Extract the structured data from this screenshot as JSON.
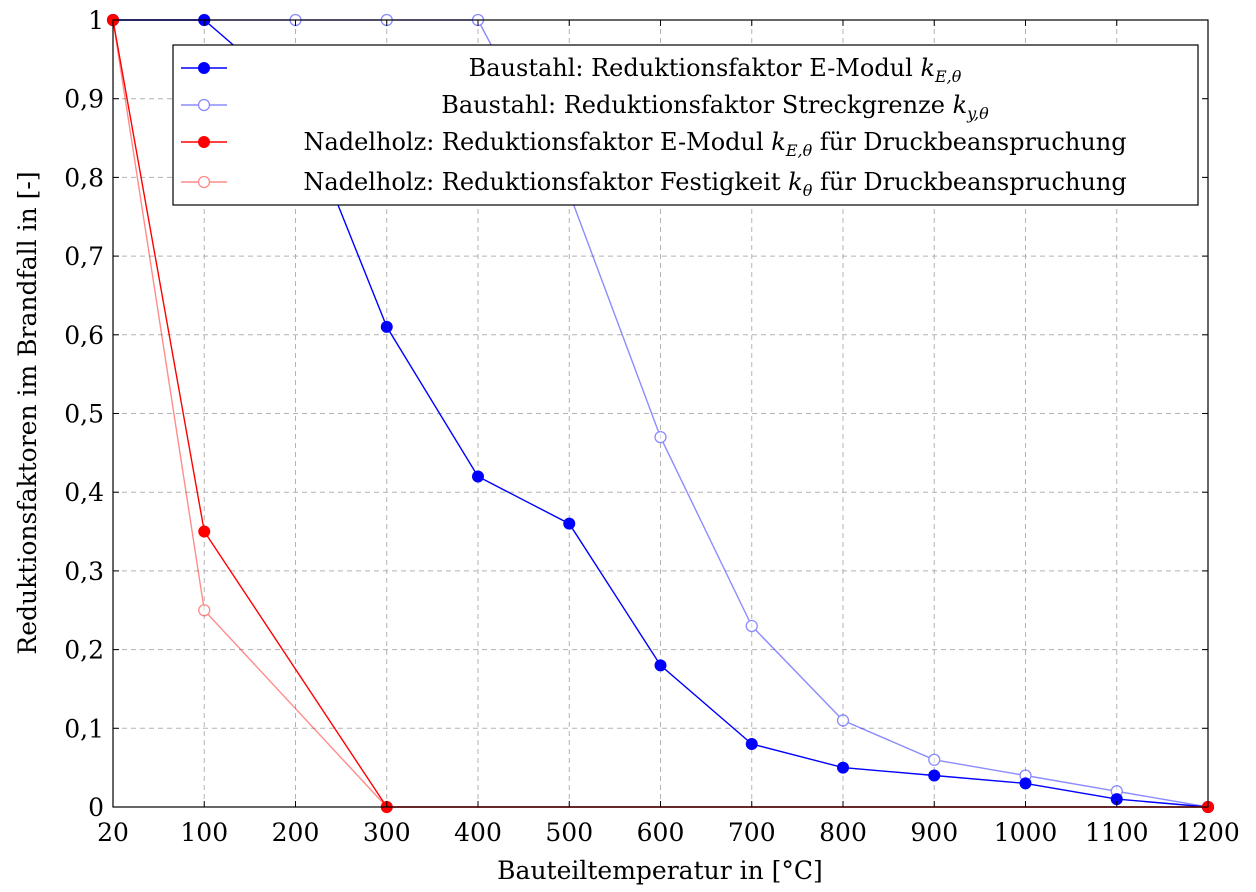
{
  "chart_data": {
    "type": "line",
    "xlabel": "Bauteiltemperatur in [°C]",
    "ylabel": "Reduktionsfaktoren im Brandfall in [-]",
    "x_ticks": [
      20,
      100,
      200,
      300,
      400,
      500,
      600,
      700,
      800,
      900,
      1000,
      1100,
      1200
    ],
    "x_tick_labels": [
      "20",
      "100",
      "200",
      "300",
      "400",
      "500",
      "600",
      "700",
      "800",
      "900",
      "1000",
      "1100",
      "1200"
    ],
    "y_ticks": [
      0,
      0.1,
      0.2,
      0.3,
      0.4,
      0.5,
      0.6,
      0.7,
      0.8,
      0.9,
      1
    ],
    "y_tick_labels": [
      "0",
      "0,1",
      "0,2",
      "0,3",
      "0,4",
      "0,5",
      "0,6",
      "0,7",
      "0,8",
      "0,9",
      "1"
    ],
    "ylim": [
      0,
      1
    ],
    "x_scale": "categorical (equally spaced ticks)",
    "grid": true,
    "legend_position": "top-right",
    "series": [
      {
        "name": "Baustahl: Reduktionsfaktor E-Modul k_{E,θ}",
        "legend_text": "Baustahl: Reduktionsfaktor E-Modul ",
        "legend_math": "k",
        "legend_sub": "E,θ",
        "legend_after": "",
        "color": "#0000ff",
        "opacity": 1,
        "marker": "filled",
        "x": [
          20,
          100,
          200,
          300,
          400,
          500,
          600,
          700,
          800,
          900,
          1000,
          1100,
          1200
        ],
        "y": [
          1,
          1,
          0.9,
          0.61,
          0.42,
          0.36,
          0.18,
          0.08,
          0.05,
          0.04,
          0.03,
          0.01,
          0
        ]
      },
      {
        "name": "Baustahl: Reduktionsfaktor Streckgrenze k_{y,θ}",
        "legend_text": "Baustahl: Reduktionsfaktor Streckgrenze ",
        "legend_math": "k",
        "legend_sub": "y,θ",
        "legend_after": "",
        "color": "#0000ff",
        "opacity": 0.45,
        "marker": "open",
        "x": [
          20,
          100,
          200,
          300,
          400,
          500,
          600,
          700,
          800,
          900,
          1000,
          1100,
          1200
        ],
        "y": [
          1,
          1,
          1,
          1,
          1,
          0.78,
          0.47,
          0.23,
          0.11,
          0.06,
          0.04,
          0.02,
          0
        ]
      },
      {
        "name": "Nadelholz: Reduktionsfaktor E-Modul k_{E,θ} für Druckbeanspruchung",
        "legend_text": "Nadelholz: Reduktionsfaktor E-Modul ",
        "legend_math": "k",
        "legend_sub": "E,θ",
        "legend_after": " für Druckbeanspruchung",
        "color": "#ff0000",
        "opacity": 1,
        "marker": "filled",
        "x": [
          20,
          100,
          300,
          1200
        ],
        "y": [
          1,
          0.35,
          0,
          0
        ]
      },
      {
        "name": "Nadelholz: Reduktionsfaktor Festigkeit k_θ für Druckbeanspruchung",
        "legend_text": "Nadelholz: Reduktionsfaktor Festigkeit ",
        "legend_math": "k",
        "legend_sub": "θ",
        "legend_after": " für Druckbeanspruchung",
        "color": "#ff0000",
        "opacity": 0.45,
        "marker": "open",
        "x": [
          20,
          100,
          300,
          1200
        ],
        "y": [
          1,
          0.25,
          0,
          0
        ]
      }
    ]
  }
}
